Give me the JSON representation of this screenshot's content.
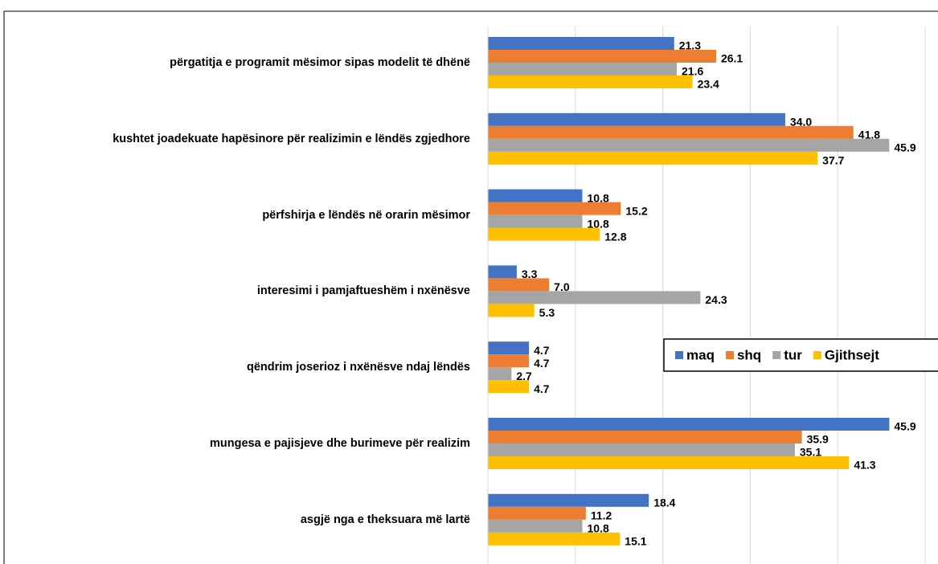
{
  "chart_data": {
    "type": "bar",
    "orientation": "horizontal",
    "categories": [
      "përgatitja e programit mësimor sipas modelit të dhënë",
      "kushtet joadekuate hapësinore për realizimin e lëndës zgjedhore",
      "përfshirja e lëndës në orarin mësimor",
      "interesimi i pamjaftueshëm i nxënësve",
      "qëndrim joserioz i nxënësve ndaj lëndës",
      "mungesa e pajisjeve dhe burimeve për realizim",
      "asgjë nga e theksuara më lartë"
    ],
    "series": [
      {
        "name": "maq",
        "color": "#4472c4",
        "values": [
          21.3,
          34.0,
          10.8,
          3.3,
          4.7,
          45.9,
          18.4
        ],
        "value_labels": [
          "21.3",
          "34.0",
          "10.8",
          "3.3",
          "4.7",
          "45.9",
          "18.4"
        ]
      },
      {
        "name": "shq",
        "color": "#ed7d31",
        "values": [
          26.1,
          41.8,
          15.2,
          7.0,
          4.7,
          35.9,
          11.2
        ],
        "value_labels": [
          "26.1",
          "41.8",
          "15.2",
          "7.0",
          "4.7",
          "35.9",
          "11.2"
        ]
      },
      {
        "name": "tur",
        "color": "#a5a5a5",
        "values": [
          21.6,
          45.9,
          10.8,
          24.3,
          2.7,
          35.1,
          10.8
        ],
        "value_labels": [
          "21.6",
          "45.9",
          "10.8",
          "24.3",
          "2.7",
          "35.1",
          "10.8"
        ]
      },
      {
        "name": "Gjithsejt",
        "color": "#ffc000",
        "values": [
          23.4,
          37.7,
          12.8,
          5.3,
          4.7,
          41.3,
          15.1
        ],
        "value_labels": [
          "23.4",
          "37.7",
          "12.8",
          "5.3",
          "4.7",
          "41.3",
          "15.1"
        ]
      }
    ],
    "xlim": [
      0,
      50
    ],
    "xticks": [
      0,
      10,
      20,
      30,
      40,
      50
    ],
    "grid": true,
    "legend": "right"
  }
}
